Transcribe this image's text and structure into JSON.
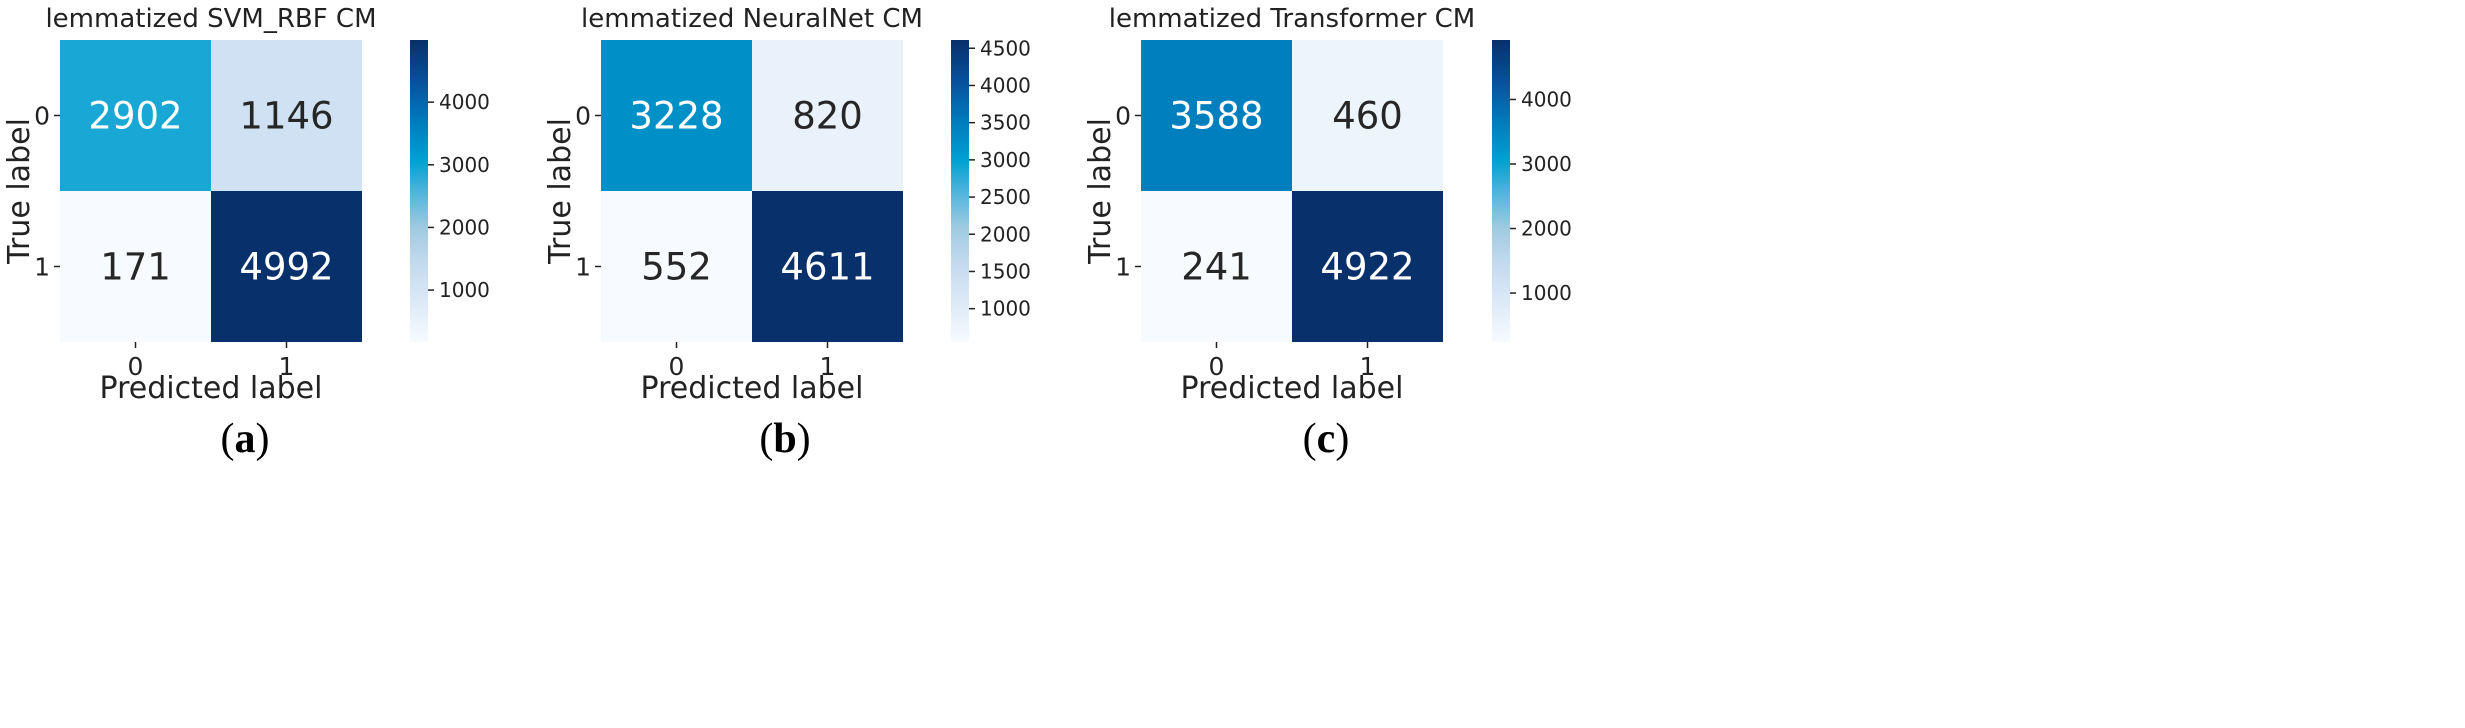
{
  "chart_data": [
    {
      "type": "heatmap",
      "panel_label": "(a)",
      "panel_label_letter": "a",
      "title": "lemmatized SVM_RBF CM",
      "xlabel": "Predicted label",
      "ylabel": "True label",
      "x_categories": [
        "0",
        "1"
      ],
      "y_categories": [
        "0",
        "1"
      ],
      "values": [
        [
          2902,
          1146
        ],
        [
          171,
          4992
        ]
      ],
      "colorbar_range": [
        171,
        4992
      ],
      "colorbar_ticks": [
        1000,
        2000,
        3000,
        4000
      ],
      "colormap": "Blues-like (light to dark blue)"
    },
    {
      "type": "heatmap",
      "panel_label": "(b)",
      "panel_label_letter": "b",
      "title": "lemmatized NeuralNet CM",
      "xlabel": "Predicted label",
      "ylabel": "True label",
      "x_categories": [
        "0",
        "1"
      ],
      "y_categories": [
        "0",
        "1"
      ],
      "values": [
        [
          3228,
          820
        ],
        [
          552,
          4611
        ]
      ],
      "colorbar_range": [
        552,
        4611
      ],
      "colorbar_ticks": [
        1000,
        1500,
        2000,
        2500,
        3000,
        3500,
        4000,
        4500
      ],
      "colormap": "Blues-like (light to dark blue)"
    },
    {
      "type": "heatmap",
      "panel_label": "(c)",
      "panel_label_letter": "c",
      "title": "lemmatized Transformer CM",
      "xlabel": "Predicted label",
      "ylabel": "True label",
      "x_categories": [
        "0",
        "1"
      ],
      "y_categories": [
        "0",
        "1"
      ],
      "values": [
        [
          3588,
          460
        ],
        [
          241,
          4922
        ]
      ],
      "colorbar_range": [
        241,
        4922
      ],
      "colorbar_ticks": [
        1000,
        2000,
        3000,
        4000
      ],
      "colormap": "Blues-like (light to dark blue)"
    }
  ]
}
